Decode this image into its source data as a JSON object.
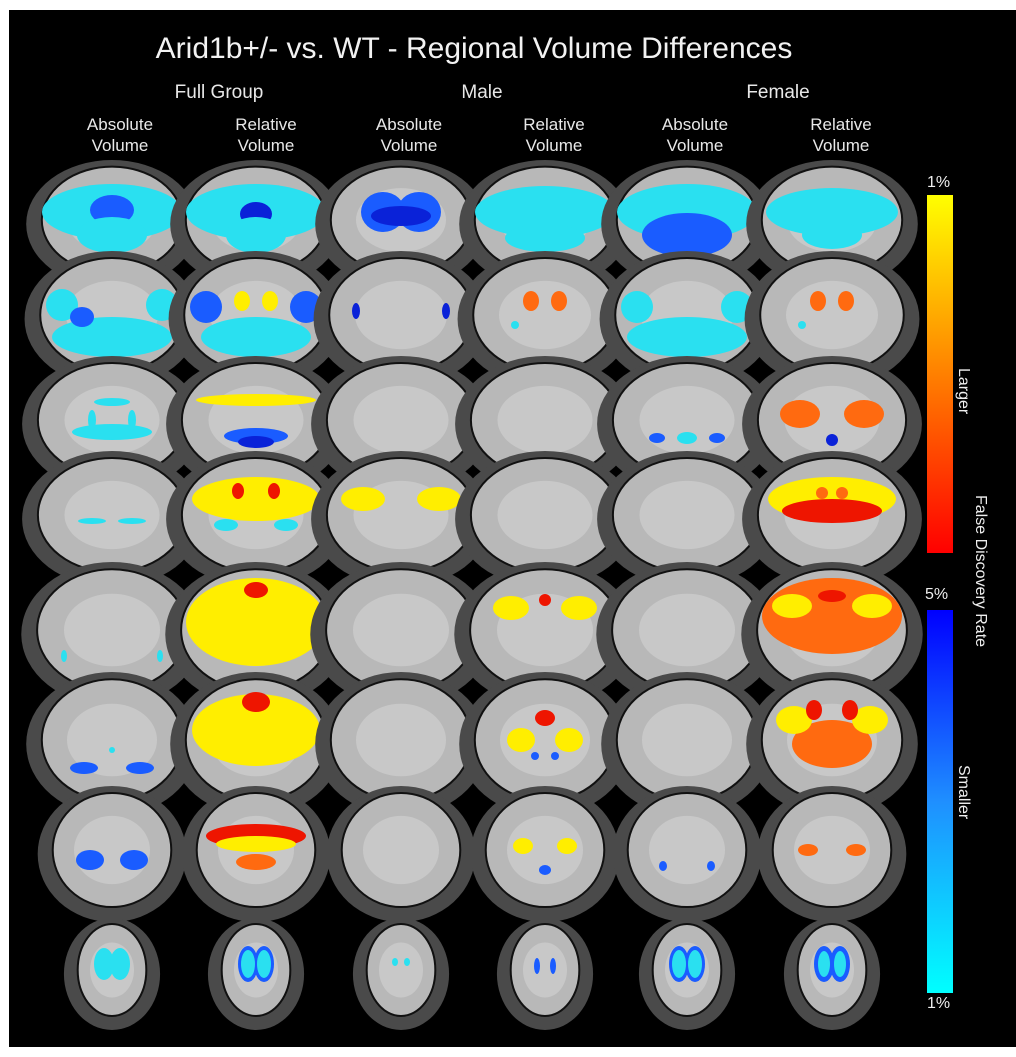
{
  "figure": {
    "title": "Arid1b+/- vs. WT - Regional Volume Differences",
    "groups": [
      "Full Group",
      "Male",
      "Female"
    ],
    "columns": [
      [
        "Absolute",
        "Volume"
      ],
      [
        "Relative",
        "Volume"
      ],
      [
        "Absolute",
        "Volume"
      ],
      [
        "Relative",
        "Volume"
      ],
      [
        "Absolute",
        "Volume"
      ],
      [
        "Relative",
        "Volume"
      ]
    ],
    "rows": 8
  },
  "colorbar": {
    "top_tick": "1%",
    "mid_tick": "5%",
    "bottom_tick": "1%",
    "larger_label": "Larger",
    "fdr_label": "False Discovery Rate",
    "smaller_label": "Smaller",
    "colors": {
      "larger_top": "#ffff00",
      "larger_mid": "#ff8000",
      "larger_bottom": "#ff0000",
      "smaller_top": "#0000ff",
      "smaller_mid": "#1f8fff",
      "smaller_bottom": "#00ffff"
    }
  },
  "colors": {
    "background": "#000000",
    "brain": "#b8b8b8",
    "cyan": "#2ae0f0",
    "blue": "#1a5cff",
    "darkblue": "#0a22d8",
    "yellow": "#ffee00",
    "orange": "#ff6a10",
    "red": "#ee1500"
  }
}
